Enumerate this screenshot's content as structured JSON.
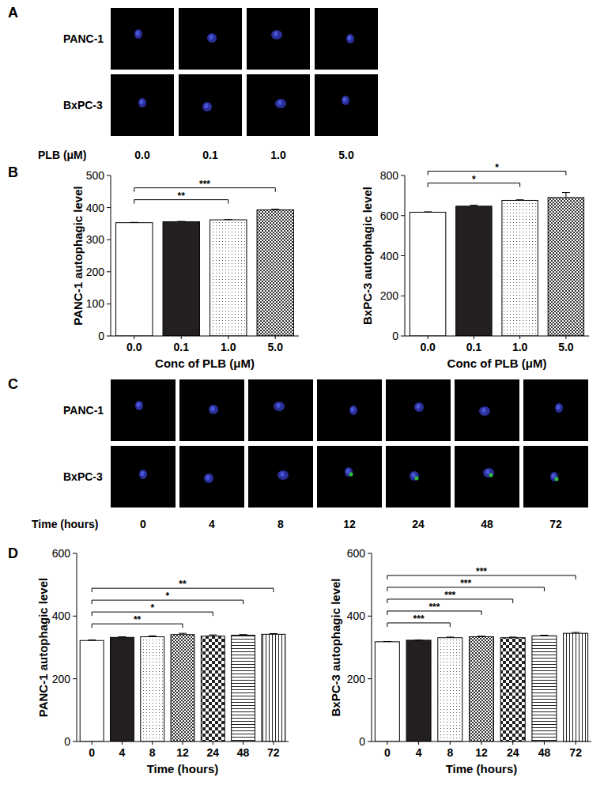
{
  "panel_labels": [
    "A",
    "B",
    "C",
    "D"
  ],
  "image_panels": [
    {
      "rows": [
        "PANC-1",
        "BxPC-3"
      ],
      "column_title": "PLB (μM)",
      "columns": [
        "0.0",
        "0.1",
        "1.0",
        "5.0"
      ]
    },
    {
      "rows": [
        "PANC-1",
        "BxPC-3"
      ],
      "column_title": "Time (hours)",
      "columns": [
        "0",
        "4",
        "8",
        "12",
        "24",
        "48",
        "72"
      ]
    }
  ],
  "chart_data": [
    {
      "type": "bar",
      "x_label": "Conc of PLB (μM)",
      "y_label": "PANC-1 autophagic level",
      "categories": [
        "0.0",
        "0.1",
        "1.0",
        "5.0"
      ],
      "values": [
        353,
        356,
        362,
        393
      ],
      "errors": [
        1,
        1,
        1,
        2
      ],
      "ylim": [
        0,
        500
      ],
      "yticks": [
        0,
        100,
        200,
        300,
        400,
        500
      ],
      "annotations": [
        {
          "text": "**",
          "from": "0.0",
          "to": "1.0"
        },
        {
          "text": "***",
          "from": "0.0",
          "to": "5.0"
        }
      ]
    },
    {
      "type": "bar",
      "x_label": "Conc of PLB (μM)",
      "y_label": "BxPC-3 autophagic level",
      "categories": [
        "0.0",
        "0.1",
        "1.0",
        "5.0"
      ],
      "values": [
        617,
        647,
        676,
        690
      ],
      "errors": [
        2,
        5,
        3,
        25
      ],
      "ylim": [
        0,
        800
      ],
      "yticks": [
        0,
        200,
        400,
        600,
        800
      ],
      "annotations": [
        {
          "text": "*",
          "from": "0.0",
          "to": "1.0"
        },
        {
          "text": "*",
          "from": "0.0",
          "to": "5.0"
        }
      ]
    },
    {
      "type": "bar",
      "x_label": "Time (hours)",
      "y_label": "PANC-1 autophagic level",
      "categories": [
        "0",
        "4",
        "8",
        "12",
        "24",
        "48",
        "72"
      ],
      "values": [
        322,
        332,
        334,
        341,
        336,
        339,
        342
      ],
      "errors": [
        2,
        2,
        3,
        4,
        4,
        2,
        2
      ],
      "ylim": [
        0,
        600
      ],
      "yticks": [
        0,
        200,
        400,
        600
      ],
      "annotations": [
        {
          "text": "**",
          "from": "0",
          "to": "12"
        },
        {
          "text": "*",
          "from": "0",
          "to": "24"
        },
        {
          "text": "*",
          "from": "0",
          "to": "48"
        },
        {
          "text": "**",
          "from": "0",
          "to": "72"
        }
      ]
    },
    {
      "type": "bar",
      "x_label": "Time (hours)",
      "y_label": "BxPC-3 autophagic level",
      "categories": [
        "0",
        "4",
        "8",
        "12",
        "24",
        "48",
        "72"
      ],
      "values": [
        318,
        323,
        331,
        334,
        331,
        337,
        345
      ],
      "errors": [
        1,
        1,
        2,
        2,
        2,
        2,
        3
      ],
      "ylim": [
        0,
        600
      ],
      "yticks": [
        0,
        200,
        400,
        600
      ],
      "annotations": [
        {
          "text": "***",
          "from": "0",
          "to": "8"
        },
        {
          "text": "***",
          "from": "0",
          "to": "12"
        },
        {
          "text": "***",
          "from": "0",
          "to": "24"
        },
        {
          "text": "***",
          "from": "0",
          "to": "48"
        },
        {
          "text": "***",
          "from": "0",
          "to": "72"
        }
      ]
    }
  ]
}
